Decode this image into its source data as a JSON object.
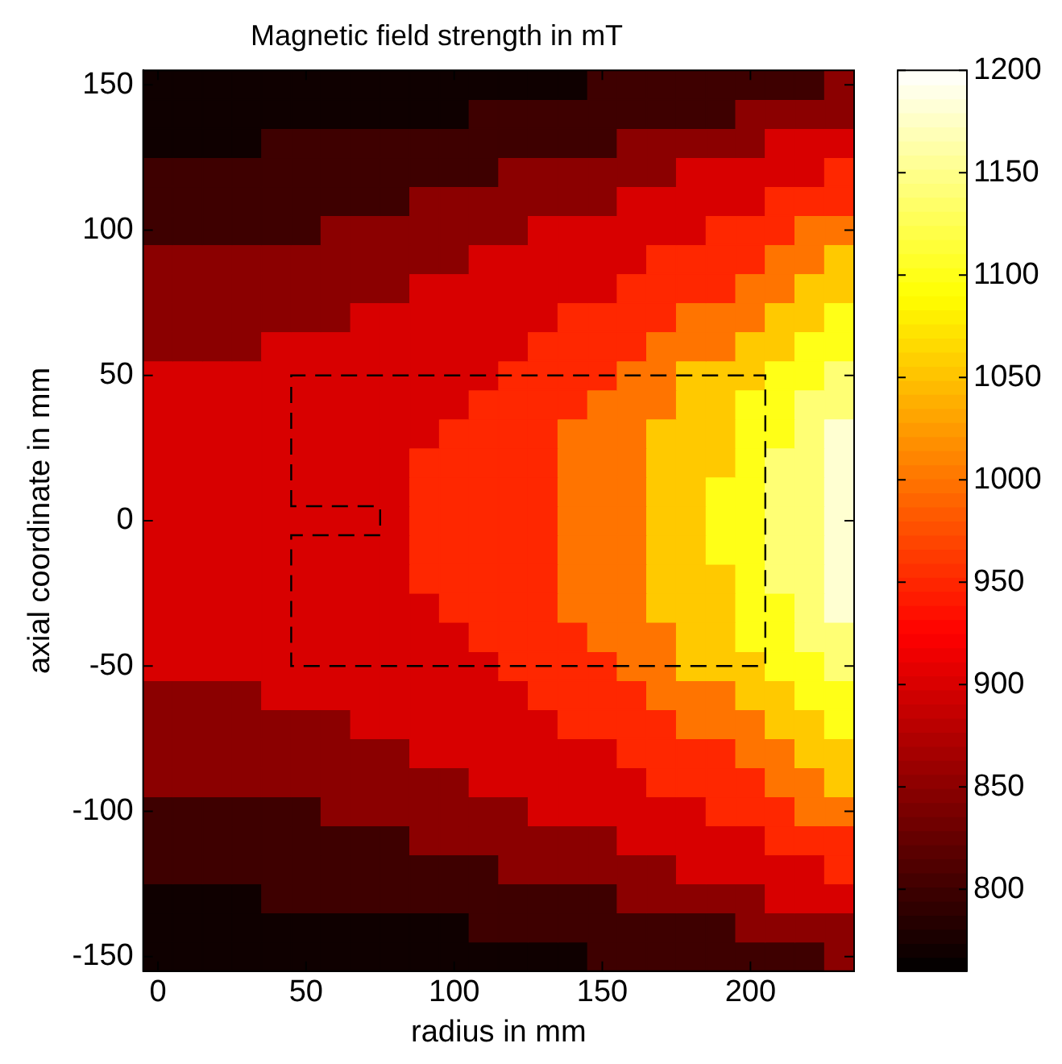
{
  "chart_data": {
    "type": "heatmap",
    "title": "Magnetic field strength in mT",
    "xlabel": "radius in mm",
    "ylabel": "axial coordinate in mm",
    "categories": [
      "0",
      null,
      null,
      null,
      null,
      "50",
      null,
      null,
      null,
      null,
      "100",
      null,
      null,
      null,
      null,
      "150",
      null,
      null,
      null,
      null,
      "200",
      null,
      null,
      null
    ],
    "y_categories": [
      "150",
      null,
      null,
      null,
      null,
      "100",
      null,
      null,
      null,
      null,
      "50",
      null,
      null,
      null,
      null,
      "0",
      null,
      null,
      null,
      null,
      "-50",
      null,
      null,
      null,
      null,
      "-100",
      null,
      null,
      null,
      null,
      "-150"
    ],
    "clim": [
      760,
      1200
    ],
    "cticks": [
      800,
      850,
      900,
      950,
      1000,
      1050,
      1100,
      1150,
      1200
    ],
    "cells": [
      [
        770,
        770,
        770,
        770,
        770,
        770,
        770,
        770,
        770,
        770,
        770,
        770,
        770,
        770,
        770,
        800,
        800,
        800,
        800,
        800,
        800,
        800,
        800,
        850
      ],
      [
        770,
        770,
        770,
        770,
        770,
        770,
        770,
        770,
        770,
        770,
        770,
        800,
        800,
        800,
        800,
        800,
        800,
        800,
        800,
        800,
        850,
        850,
        850,
        850
      ],
      [
        770,
        770,
        770,
        770,
        800,
        800,
        800,
        800,
        800,
        800,
        800,
        800,
        800,
        800,
        800,
        800,
        850,
        850,
        850,
        850,
        850,
        900,
        900,
        900
      ],
      [
        800,
        800,
        800,
        800,
        800,
        800,
        800,
        800,
        800,
        800,
        800,
        800,
        850,
        850,
        850,
        850,
        850,
        850,
        900,
        900,
        900,
        900,
        900,
        950
      ],
      [
        800,
        800,
        800,
        800,
        800,
        800,
        800,
        800,
        800,
        850,
        850,
        850,
        850,
        850,
        850,
        850,
        900,
        900,
        900,
        900,
        900,
        950,
        950,
        950
      ],
      [
        800,
        800,
        800,
        800,
        800,
        800,
        850,
        850,
        850,
        850,
        850,
        850,
        850,
        900,
        900,
        900,
        900,
        900,
        900,
        950,
        950,
        950,
        1000,
        1000
      ],
      [
        850,
        850,
        850,
        850,
        850,
        850,
        850,
        850,
        850,
        850,
        850,
        900,
        900,
        900,
        900,
        900,
        900,
        950,
        950,
        950,
        950,
        1000,
        1000,
        1055
      ],
      [
        850,
        850,
        850,
        850,
        850,
        850,
        850,
        850,
        850,
        900,
        900,
        900,
        900,
        900,
        900,
        900,
        950,
        950,
        950,
        950,
        1000,
        1000,
        1055,
        1055
      ],
      [
        850,
        850,
        850,
        850,
        850,
        850,
        850,
        900,
        900,
        900,
        900,
        900,
        900,
        900,
        950,
        950,
        950,
        950,
        1000,
        1000,
        1000,
        1055,
        1055,
        1100
      ],
      [
        850,
        850,
        850,
        850,
        900,
        900,
        900,
        900,
        900,
        900,
        900,
        900,
        900,
        950,
        950,
        950,
        950,
        1000,
        1000,
        1000,
        1055,
        1055,
        1100,
        1100
      ],
      [
        900,
        900,
        900,
        900,
        900,
        900,
        900,
        900,
        900,
        900,
        900,
        900,
        950,
        950,
        950,
        950,
        1000,
        1000,
        1055,
        1055,
        1055,
        1100,
        1100,
        1140
      ],
      [
        900,
        900,
        900,
        900,
        900,
        900,
        900,
        900,
        900,
        900,
        900,
        950,
        950,
        950,
        950,
        1000,
        1000,
        1000,
        1055,
        1055,
        1100,
        1100,
        1140,
        1140
      ],
      [
        900,
        900,
        900,
        900,
        900,
        900,
        900,
        900,
        900,
        900,
        950,
        950,
        950,
        950,
        1000,
        1000,
        1000,
        1055,
        1055,
        1055,
        1100,
        1100,
        1140,
        1180
      ],
      [
        900,
        900,
        900,
        900,
        900,
        900,
        900,
        900,
        900,
        950,
        950,
        950,
        950,
        950,
        1000,
        1000,
        1000,
        1055,
        1055,
        1055,
        1100,
        1140,
        1140,
        1180
      ],
      [
        900,
        900,
        900,
        900,
        900,
        900,
        900,
        900,
        900,
        950,
        950,
        950,
        950,
        950,
        1000,
        1000,
        1000,
        1055,
        1055,
        1100,
        1100,
        1140,
        1140,
        1180
      ],
      [
        900,
        900,
        900,
        900,
        900,
        900,
        900,
        900,
        900,
        950,
        950,
        950,
        950,
        950,
        1000,
        1000,
        1000,
        1055,
        1055,
        1100,
        1100,
        1140,
        1140,
        1180
      ],
      [
        900,
        900,
        900,
        900,
        900,
        900,
        900,
        900,
        900,
        950,
        950,
        950,
        950,
        950,
        1000,
        1000,
        1000,
        1055,
        1055,
        1100,
        1100,
        1140,
        1140,
        1180
      ],
      [
        900,
        900,
        900,
        900,
        900,
        900,
        900,
        900,
        900,
        950,
        950,
        950,
        950,
        950,
        1000,
        1000,
        1000,
        1055,
        1055,
        1055,
        1100,
        1140,
        1140,
        1180
      ],
      [
        900,
        900,
        900,
        900,
        900,
        900,
        900,
        900,
        900,
        900,
        950,
        950,
        950,
        950,
        1000,
        1000,
        1000,
        1055,
        1055,
        1055,
        1100,
        1100,
        1140,
        1180
      ],
      [
        900,
        900,
        900,
        900,
        900,
        900,
        900,
        900,
        900,
        900,
        900,
        950,
        950,
        950,
        950,
        1000,
        1000,
        1000,
        1055,
        1055,
        1100,
        1100,
        1140,
        1140
      ],
      [
        900,
        900,
        900,
        900,
        900,
        900,
        900,
        900,
        900,
        900,
        900,
        900,
        950,
        950,
        950,
        950,
        1000,
        1000,
        1055,
        1055,
        1055,
        1100,
        1100,
        1140
      ],
      [
        850,
        850,
        850,
        850,
        900,
        900,
        900,
        900,
        900,
        900,
        900,
        900,
        900,
        950,
        950,
        950,
        950,
        1000,
        1000,
        1000,
        1055,
        1055,
        1100,
        1100
      ],
      [
        850,
        850,
        850,
        850,
        850,
        850,
        850,
        900,
        900,
        900,
        900,
        900,
        900,
        900,
        950,
        950,
        950,
        950,
        1000,
        1000,
        1000,
        1055,
        1055,
        1100
      ],
      [
        850,
        850,
        850,
        850,
        850,
        850,
        850,
        850,
        850,
        900,
        900,
        900,
        900,
        900,
        900,
        900,
        950,
        950,
        950,
        950,
        1000,
        1000,
        1055,
        1055
      ],
      [
        850,
        850,
        850,
        850,
        850,
        850,
        850,
        850,
        850,
        850,
        850,
        900,
        900,
        900,
        900,
        900,
        900,
        950,
        950,
        950,
        950,
        1000,
        1000,
        1055
      ],
      [
        800,
        800,
        800,
        800,
        800,
        800,
        850,
        850,
        850,
        850,
        850,
        850,
        850,
        900,
        900,
        900,
        900,
        900,
        900,
        950,
        950,
        950,
        1000,
        1000
      ],
      [
        800,
        800,
        800,
        800,
        800,
        800,
        800,
        800,
        800,
        850,
        850,
        850,
        850,
        850,
        850,
        850,
        900,
        900,
        900,
        900,
        900,
        950,
        950,
        950
      ],
      [
        800,
        800,
        800,
        800,
        800,
        800,
        800,
        800,
        800,
        800,
        800,
        800,
        850,
        850,
        850,
        850,
        850,
        850,
        900,
        900,
        900,
        900,
        900,
        950
      ],
      [
        770,
        770,
        770,
        770,
        800,
        800,
        800,
        800,
        800,
        800,
        800,
        800,
        800,
        800,
        800,
        800,
        850,
        850,
        850,
        850,
        850,
        900,
        900,
        900
      ],
      [
        770,
        770,
        770,
        770,
        770,
        770,
        770,
        770,
        770,
        770,
        770,
        800,
        800,
        800,
        800,
        800,
        800,
        800,
        800,
        800,
        850,
        850,
        850,
        850
      ],
      [
        770,
        770,
        770,
        770,
        770,
        770,
        770,
        770,
        770,
        770,
        770,
        770,
        770,
        770,
        770,
        800,
        800,
        800,
        800,
        800,
        800,
        800,
        800,
        850
      ]
    ]
  }
}
